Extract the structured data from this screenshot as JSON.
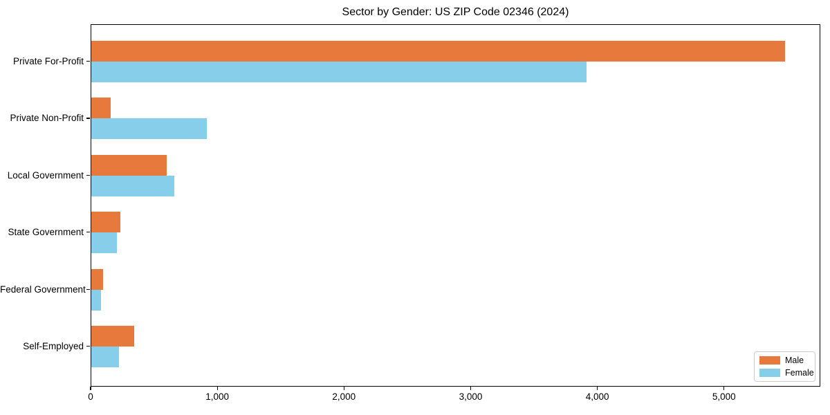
{
  "chart_data": {
    "type": "bar",
    "orientation": "horizontal",
    "title": "Sector by Gender: US ZIP Code 02346 (2024)",
    "categories": [
      "Private For-Profit",
      "Private Non-Profit",
      "Local Government",
      "State Government",
      "Federal Government",
      "Self-Employed"
    ],
    "series": [
      {
        "name": "Male",
        "color": "#E8793D",
        "values": [
          5475,
          150,
          595,
          230,
          95,
          340
        ]
      },
      {
        "name": "Female",
        "color": "#87CEEB",
        "values": [
          3910,
          910,
          655,
          200,
          75,
          220
        ]
      }
    ],
    "xlabel": "",
    "ylabel": "",
    "xlim": [
      0,
      5760
    ],
    "xticks": [
      0,
      1000,
      2000,
      3000,
      4000,
      5000
    ],
    "xtick_labels": [
      "0",
      "1,000",
      "2,000",
      "3,000",
      "4,000",
      "5,000"
    ],
    "grid": false,
    "legend": {
      "position": "lower-right",
      "entries": [
        "Male",
        "Female"
      ]
    },
    "colors": {
      "plot_border": "#000000",
      "background": "#FFFFFF",
      "legend_border": "#CCCCCC"
    }
  }
}
